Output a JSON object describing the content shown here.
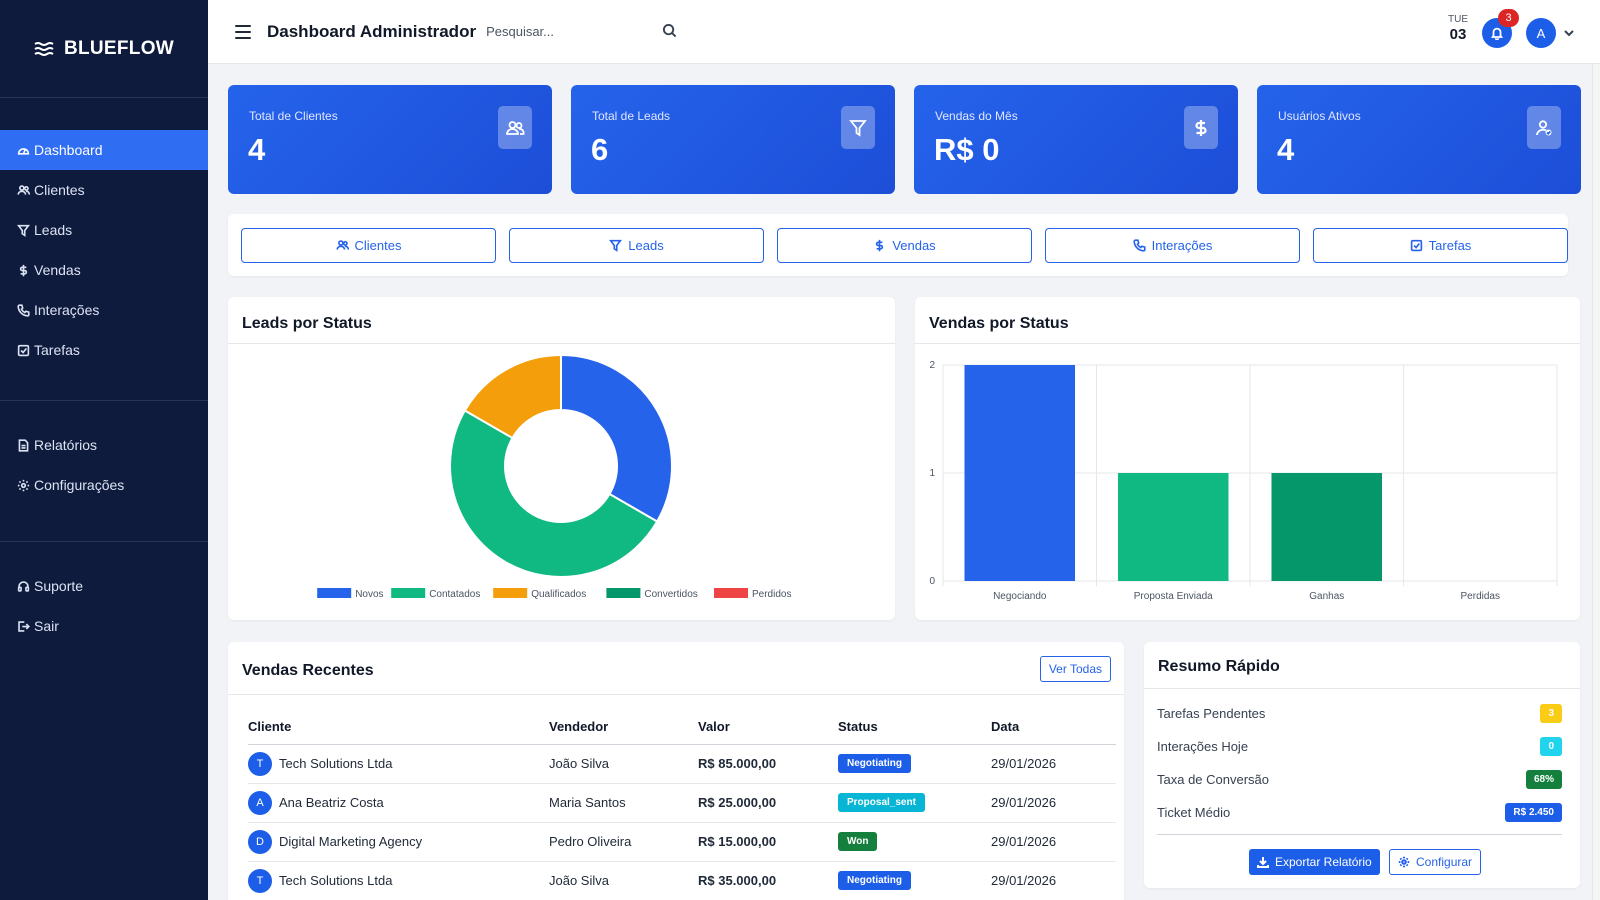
{
  "sidebar": {
    "brand": "BLUEFLOW",
    "main_items": [
      {
        "label": "Dashboard",
        "icon": "gauge-icon",
        "active": true
      },
      {
        "label": "Clientes",
        "icon": "users-icon"
      },
      {
        "label": "Leads",
        "icon": "funnel-icon"
      },
      {
        "label": "Vendas",
        "icon": "dollar-icon"
      },
      {
        "label": "Interações",
        "icon": "phone-icon"
      },
      {
        "label": "Tarefas",
        "icon": "check-square-icon"
      }
    ],
    "secondary_items": [
      {
        "label": "Relatórios",
        "icon": "file-icon"
      },
      {
        "label": "Configurações",
        "icon": "gear-icon"
      }
    ],
    "footer_items": [
      {
        "label": "Suporte",
        "icon": "headset-icon"
      },
      {
        "label": "Sair",
        "icon": "logout-icon"
      }
    ]
  },
  "header": {
    "title": "Dashboard Administrador",
    "search_placeholder": "Pesquisar...",
    "day": "TUE",
    "date": "03",
    "notifications": "3",
    "avatar": "A"
  },
  "stats": [
    {
      "label": "Total de Clientes",
      "value": "4",
      "icon": "users-icon"
    },
    {
      "label": "Total de Leads",
      "value": "6",
      "icon": "funnel-icon"
    },
    {
      "label": "Vendas do Mês",
      "value": "R$ 0",
      "icon": "dollar-icon"
    },
    {
      "label": "Usuários Ativos",
      "value": "4",
      "icon": "user-check-icon"
    }
  ],
  "quick_actions": [
    "Clientes",
    "Leads",
    "Vendas",
    "Interações",
    "Tarefas"
  ],
  "leads_chart_title": "Leads por Status",
  "vendas_chart_title": "Vendas por Status",
  "chart_data": [
    {
      "type": "pie",
      "title": "Leads por Status",
      "categories": [
        "Novos",
        "Contatados",
        "Qualificados",
        "Convertidos",
        "Perdidos"
      ],
      "values": [
        2,
        3,
        1,
        0,
        0
      ],
      "colors": [
        "#2563eb",
        "#10b981",
        "#f59e0b",
        "#059669",
        "#ef4444"
      ],
      "donut": true,
      "legend": "bottom"
    },
    {
      "type": "bar",
      "title": "Vendas por Status",
      "categories": [
        "Negociando",
        "Proposta Enviada",
        "Ganhas",
        "Perdidas"
      ],
      "values": [
        2,
        1,
        1,
        0
      ],
      "colors": [
        "#2563eb",
        "#10b981",
        "#059669",
        "#ef4444"
      ],
      "ylim": [
        0,
        2
      ],
      "yticks": [
        "0",
        "1",
        "2"
      ],
      "grid": true
    }
  ],
  "recent_sales": {
    "title": "Vendas Recentes",
    "view_all": "Ver Todas",
    "columns": [
      "Cliente",
      "Vendedor",
      "Valor",
      "Status",
      "Data"
    ],
    "rows": [
      {
        "initial": "T",
        "cliente": "Tech Solutions Ltda",
        "vendedor": "João Silva",
        "valor": "R$ 85.000,00",
        "status": "Negotiating",
        "status_color": "#1d5ee8",
        "data": "29/01/2026"
      },
      {
        "initial": "A",
        "cliente": "Ana Beatriz Costa",
        "vendedor": "Maria Santos",
        "valor": "R$ 25.000,00",
        "status": "Proposal_sent",
        "status_color": "#06b6d4",
        "data": "29/01/2026"
      },
      {
        "initial": "D",
        "cliente": "Digital Marketing Agency",
        "vendedor": "Pedro Oliveira",
        "valor": "R$ 15.000,00",
        "status": "Won",
        "status_color": "#15803d",
        "data": "29/01/2026"
      },
      {
        "initial": "T",
        "cliente": "Tech Solutions Ltda",
        "vendedor": "João Silva",
        "valor": "R$ 35.000,00",
        "status": "Negotiating",
        "status_color": "#1d5ee8",
        "data": "29/01/2026"
      }
    ]
  },
  "resumo": {
    "title": "Resumo Rápido",
    "items": [
      {
        "label": "Tarefas Pendentes",
        "value": "3",
        "color": "#facc15"
      },
      {
        "label": "Interações Hoje",
        "value": "0",
        "color": "#22d3ee"
      },
      {
        "label": "Taxa de Conversão",
        "value": "68%",
        "color": "#15803d"
      },
      {
        "label": "Ticket Médio",
        "value": "R$ 2.450",
        "color": "#1d5ee8"
      }
    ],
    "export_label": "Exportar Relatório",
    "config_label": "Configurar"
  }
}
